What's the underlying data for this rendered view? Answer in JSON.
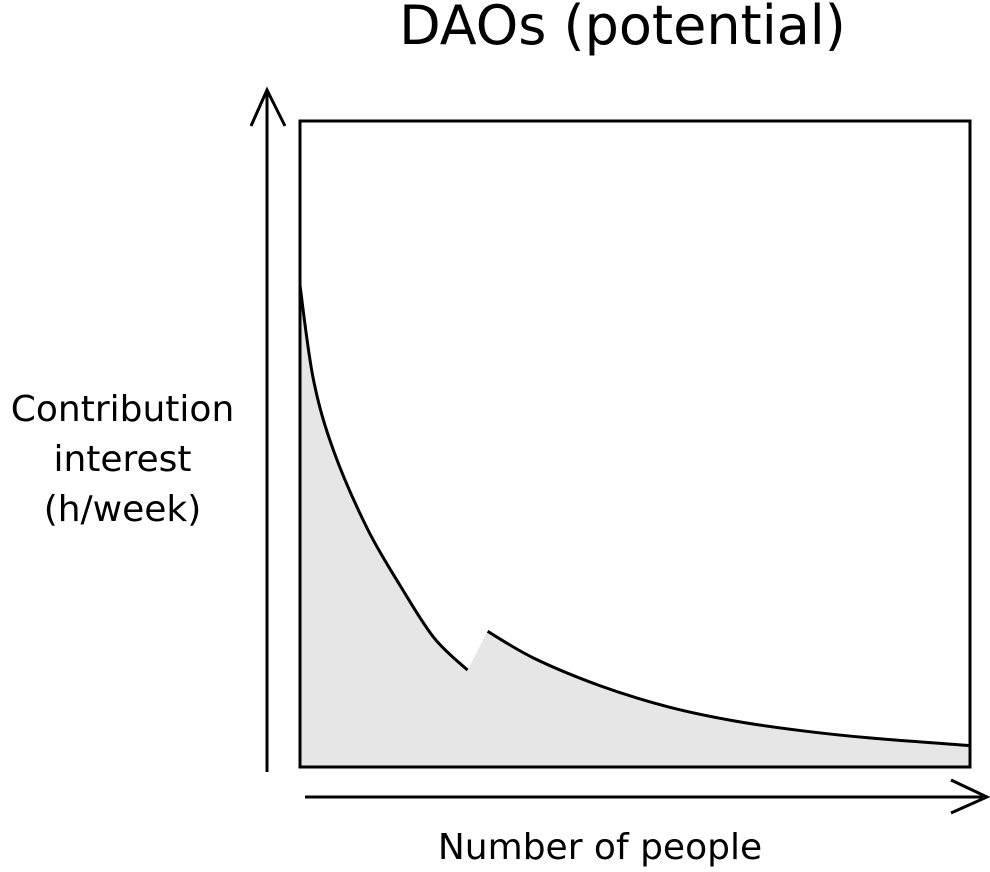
{
  "chart_data": {
    "type": "area",
    "title": "DAOs (potential)",
    "xlabel": "Number of people",
    "ylabel": [
      "Contribution",
      "interest",
      "(h/week)"
    ],
    "colors": {
      "fill": "#e6e6e6",
      "line": "#000000",
      "frame": "#000000"
    },
    "grid": false,
    "legend": "none",
    "xlim": [
      0,
      1
    ],
    "ylim": [
      0,
      1
    ],
    "series": [
      {
        "x": [
          0,
          0.02,
          0.05,
          0.1,
          0.15,
          0.2,
          0.25,
          0.28,
          0.35,
          0.45,
          0.55,
          0.65,
          0.75,
          0.85,
          1
        ],
        "values": [
          0.745,
          0.6,
          0.49,
          0.37,
          0.28,
          0.2,
          0.15,
          0.21,
          0.168,
          0.125,
          0.093,
          0.071,
          0.056,
          0.045,
          0.033
        ]
      }
    ]
  }
}
